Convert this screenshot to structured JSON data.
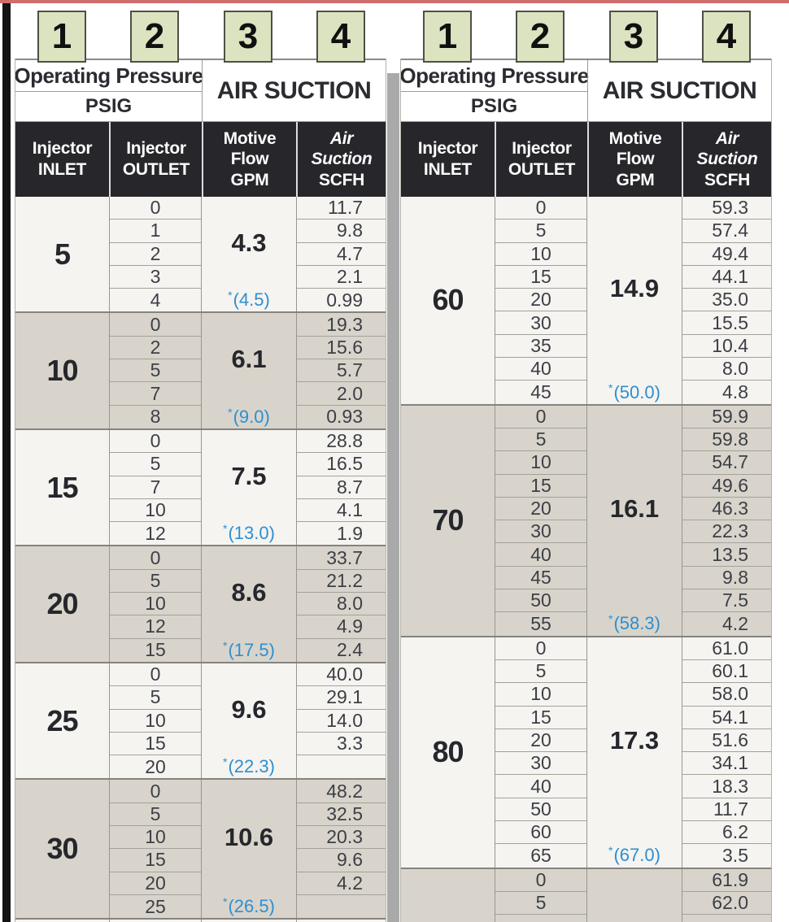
{
  "page": {
    "badge_labels": [
      "1",
      "2",
      "3",
      "4"
    ]
  },
  "colors": {
    "badge_green": "#dce3c1",
    "header_dark": "#26262b",
    "row_light": "#f5f4f1",
    "row_tan": "#d8d4cb",
    "note_blue": "#2e8fd0",
    "top_line_red": "#cf6e6e"
  },
  "header": {
    "group1_title": "Operating Pressure",
    "group1_sub": "PSIG",
    "group2_title": "AIR SUCTION",
    "columns": [
      {
        "lines": [
          "Injector",
          "INLET"
        ]
      },
      {
        "lines": [
          "Injector",
          "OUTLET"
        ]
      },
      {
        "lines": [
          "Motive",
          "Flow",
          "GPM"
        ]
      },
      {
        "lines": [
          "Air",
          "Suction",
          "SCFH"
        ]
      }
    ]
  },
  "tables": {
    "left": {
      "blocks": [
        {
          "inlet": "5",
          "motive": "4.3",
          "star": "*",
          "note": "(4.5)",
          "rows": [
            {
              "outlet": "0",
              "scfh": "11.7"
            },
            {
              "outlet": "1",
              "scfh": "9.8"
            },
            {
              "outlet": "2",
              "scfh": "4.7"
            },
            {
              "outlet": "3",
              "scfh": "2.1"
            },
            {
              "outlet": "4",
              "scfh": "0.99"
            }
          ]
        },
        {
          "inlet": "10",
          "motive": "6.1",
          "star": "*",
          "note": "(9.0)",
          "rows": [
            {
              "outlet": "0",
              "scfh": "19.3"
            },
            {
              "outlet": "2",
              "scfh": "15.6"
            },
            {
              "outlet": "5",
              "scfh": "5.7"
            },
            {
              "outlet": "7",
              "scfh": "2.0"
            },
            {
              "outlet": "8",
              "scfh": "0.93"
            }
          ]
        },
        {
          "inlet": "15",
          "motive": "7.5",
          "star": "*",
          "note": "(13.0)",
          "rows": [
            {
              "outlet": "0",
              "scfh": "28.8"
            },
            {
              "outlet": "5",
              "scfh": "16.5"
            },
            {
              "outlet": "7",
              "scfh": "8.7"
            },
            {
              "outlet": "10",
              "scfh": "4.1"
            },
            {
              "outlet": "12",
              "scfh": "1.9"
            }
          ]
        },
        {
          "inlet": "20",
          "motive": "8.6",
          "star": "*",
          "note": "(17.5)",
          "rows": [
            {
              "outlet": "0",
              "scfh": "33.7"
            },
            {
              "outlet": "5",
              "scfh": "21.2"
            },
            {
              "outlet": "10",
              "scfh": "8.0"
            },
            {
              "outlet": "12",
              "scfh": "4.9"
            },
            {
              "outlet": "15",
              "scfh": "2.4"
            }
          ]
        },
        {
          "inlet": "25",
          "motive": "9.6",
          "star": "*",
          "note": "(22.3)",
          "rows": [
            {
              "outlet": "0",
              "scfh": "40.0"
            },
            {
              "outlet": "5",
              "scfh": "29.1"
            },
            {
              "outlet": "10",
              "scfh": "14.0"
            },
            {
              "outlet": "15",
              "scfh": "3.3"
            },
            {
              "outlet": "20",
              "scfh": ""
            }
          ]
        },
        {
          "inlet": "30",
          "motive": "10.6",
          "star": "*",
          "note": "(26.5)",
          "rows": [
            {
              "outlet": "0",
              "scfh": "48.2"
            },
            {
              "outlet": "5",
              "scfh": "32.5"
            },
            {
              "outlet": "10",
              "scfh": "20.3"
            },
            {
              "outlet": "15",
              "scfh": "9.6"
            },
            {
              "outlet": "20",
              "scfh": "4.2"
            },
            {
              "outlet": "25",
              "scfh": ""
            }
          ]
        },
        {
          "inlet": "",
          "motive": "",
          "star": "",
          "note": "",
          "rows": [
            {
              "outlet": "",
              "scfh": ""
            }
          ]
        }
      ]
    },
    "right": {
      "blocks": [
        {
          "inlet": "60",
          "motive": "14.9",
          "star": "*",
          "note": "(50.0)",
          "rows": [
            {
              "outlet": "0",
              "scfh": "59.3"
            },
            {
              "outlet": "5",
              "scfh": "57.4"
            },
            {
              "outlet": "10",
              "scfh": "49.4"
            },
            {
              "outlet": "15",
              "scfh": "44.1"
            },
            {
              "outlet": "20",
              "scfh": "35.0"
            },
            {
              "outlet": "30",
              "scfh": "15.5"
            },
            {
              "outlet": "35",
              "scfh": "10.4"
            },
            {
              "outlet": "40",
              "scfh": "8.0"
            },
            {
              "outlet": "45",
              "scfh": "4.8"
            }
          ]
        },
        {
          "inlet": "70",
          "motive": "16.1",
          "star": "*",
          "note": "(58.3)",
          "rows": [
            {
              "outlet": "0",
              "scfh": "59.9"
            },
            {
              "outlet": "5",
              "scfh": "59.8"
            },
            {
              "outlet": "10",
              "scfh": "54.7"
            },
            {
              "outlet": "15",
              "scfh": "49.6"
            },
            {
              "outlet": "20",
              "scfh": "46.3"
            },
            {
              "outlet": "30",
              "scfh": "22.3"
            },
            {
              "outlet": "40",
              "scfh": "13.5"
            },
            {
              "outlet": "45",
              "scfh": "9.8"
            },
            {
              "outlet": "50",
              "scfh": "7.5"
            },
            {
              "outlet": "55",
              "scfh": "4.2"
            }
          ]
        },
        {
          "inlet": "80",
          "motive": "17.3",
          "star": "*",
          "note": "(67.0)",
          "rows": [
            {
              "outlet": "0",
              "scfh": "61.0"
            },
            {
              "outlet": "5",
              "scfh": "60.1"
            },
            {
              "outlet": "10",
              "scfh": "58.0"
            },
            {
              "outlet": "15",
              "scfh": "54.1"
            },
            {
              "outlet": "20",
              "scfh": "51.6"
            },
            {
              "outlet": "30",
              "scfh": "34.1"
            },
            {
              "outlet": "40",
              "scfh": "18.3"
            },
            {
              "outlet": "50",
              "scfh": "11.7"
            },
            {
              "outlet": "60",
              "scfh": "6.2"
            },
            {
              "outlet": "65",
              "scfh": "3.5"
            }
          ]
        },
        {
          "inlet": "",
          "motive": "",
          "star": "",
          "note": "",
          "rows": [
            {
              "outlet": "0",
              "scfh": "61.9"
            },
            {
              "outlet": "5",
              "scfh": "62.0"
            },
            {
              "outlet": "",
              "scfh": ""
            }
          ]
        }
      ]
    }
  }
}
